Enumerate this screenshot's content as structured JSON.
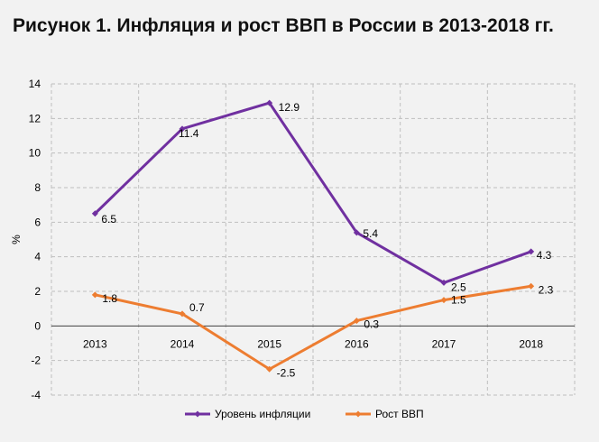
{
  "title": "Рисунок 1. Инфляция и рост ВВП в России в 2013-2018 гг.",
  "chart_data": {
    "type": "line",
    "title": "Рисунок 1. Инфляция и рост ВВП в России в 2013-2018 гг.",
    "xlabel": "",
    "ylabel": "%",
    "categories": [
      "2013",
      "2014",
      "2015",
      "2016",
      "2017",
      "2018"
    ],
    "ylim": [
      -4,
      14
    ],
    "yticks": [
      "-4",
      "-2",
      "0",
      "2",
      "4",
      "6",
      "8",
      "10",
      "12",
      "14"
    ],
    "grid": true,
    "legend_position": "bottom",
    "series": [
      {
        "name": "Уровень инфляции",
        "color": "#7030a0",
        "values": [
          6.5,
          11.4,
          12.9,
          5.4,
          2.5,
          4.3
        ],
        "labels": [
          "6.5",
          "11.4",
          "12.9",
          "5.4",
          "2.5",
          "4.3"
        ]
      },
      {
        "name": "Рост ВВП",
        "color": "#ed7d31",
        "values": [
          1.8,
          0.7,
          -2.5,
          0.3,
          1.5,
          2.3
        ],
        "labels": [
          "1.8",
          "0.7",
          "-2.5",
          "0.3",
          "1.5",
          "2.3"
        ]
      }
    ]
  }
}
